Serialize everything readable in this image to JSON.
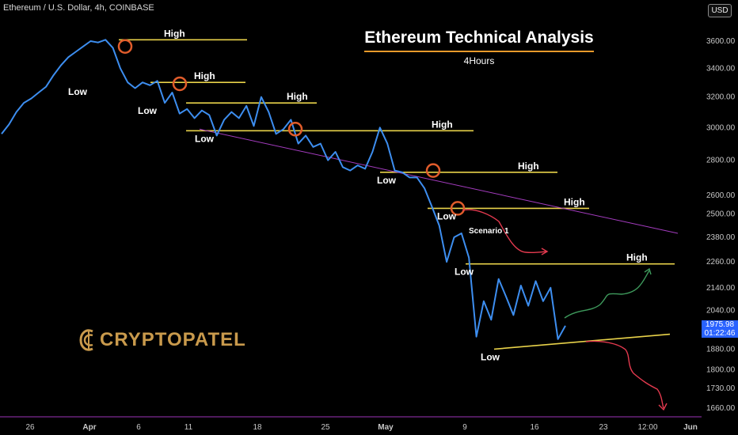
{
  "header": {
    "symbol": "Ethereum / U.S. Dollar, 4h, COINBASE",
    "currency": "USD"
  },
  "title": {
    "main": "Ethereum Technical Analysis",
    "sub": "4Hours"
  },
  "brand": {
    "name": "CRYPTOPATEL",
    "color": "#c99a4c"
  },
  "price_tag": {
    "price": "1975.98",
    "countdown": "01:22:46",
    "color": "#2962ff"
  },
  "colors": {
    "price_line": "#3d8ef0",
    "level_line": "#e8d24a",
    "trend_line": "#a43cbf",
    "circle": "#e05c2b",
    "scenario_red": "#e53a4f",
    "scenario_green": "#3e9a5c",
    "bottom_border": "#9b34b8"
  },
  "chart_data": {
    "type": "line",
    "y_axis": {
      "scale": "log",
      "ticks": [
        "3600.00",
        "3400.00",
        "3200.00",
        "3000.00",
        "2800.00",
        "2600.00",
        "2500.00",
        "2380.00",
        "2260.00",
        "2140.00",
        "2040.00",
        "1880.00",
        "1800.00",
        "1730.00",
        "1660.00"
      ]
    },
    "x_axis": {
      "ticks": [
        "26",
        "Apr",
        "6",
        "11",
        "18",
        "25",
        "May",
        "9",
        "16",
        "23",
        "12:00",
        "Jun"
      ]
    },
    "series": [
      {
        "values": [
          2960,
          3020,
          3100,
          3160,
          3190,
          3230,
          3270,
          3350,
          3420,
          3480,
          3520,
          3560,
          3600,
          3590,
          3610,
          3550,
          3400,
          3300,
          3260,
          3300,
          3280,
          3310,
          3160,
          3230,
          3090,
          3120,
          3060,
          3110,
          3080,
          2950,
          3050,
          3100,
          3060,
          3140,
          3010,
          3200,
          3100,
          2960,
          2990,
          3050,
          2900,
          2950,
          2880,
          2900,
          2800,
          2850,
          2760,
          2740,
          2770,
          2750,
          2850,
          3000,
          2900,
          2740,
          2730,
          2700,
          2700,
          2640,
          2540,
          2440,
          2260,
          2380,
          2400,
          2280,
          1930,
          2080,
          2000,
          2180,
          2100,
          2020,
          2150,
          2060,
          2170,
          2080,
          2140,
          1920,
          1975
        ]
      }
    ],
    "levels": [
      {
        "label": "High",
        "value": 3610
      },
      {
        "label": "Low",
        "value": 3300
      },
      {
        "label": "High",
        "value": 3300
      },
      {
        "label": "Low",
        "value": 3160
      },
      {
        "label": "High",
        "value": 3160
      },
      {
        "label": "Low",
        "value": 2980
      },
      {
        "label": "High",
        "value": 2980
      },
      {
        "label": "Low",
        "value": 2730
      },
      {
        "label": "High",
        "value": 2730
      },
      {
        "label": "Low",
        "value": 2530
      },
      {
        "label": "High",
        "value": 2530
      },
      {
        "label": "Low",
        "value": 2250
      },
      {
        "label": "High",
        "value": 2250
      },
      {
        "label": "Low",
        "value": 1900
      }
    ],
    "annotations": [
      "Scenario 1"
    ]
  }
}
